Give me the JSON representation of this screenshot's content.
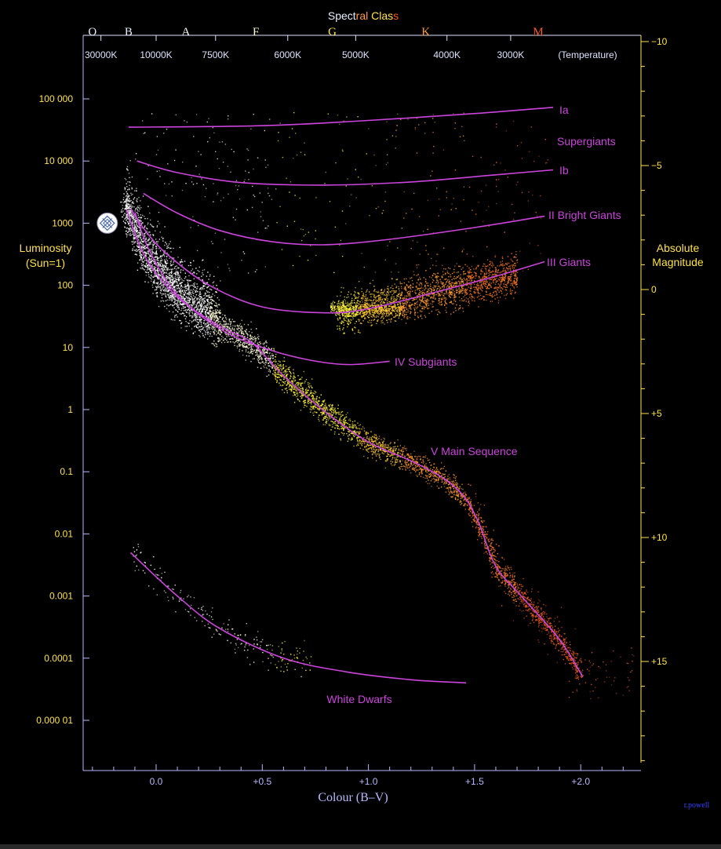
{
  "chart_data": {
    "type": "scatter",
    "title_parts": [
      {
        "text": "Spect",
        "color": "#e8f0ff"
      },
      {
        "text": "ral",
        "color": "#ff9a3c"
      },
      {
        "text": " Clas",
        "color": "#ffe24a"
      },
      {
        "text": "s",
        "color": "#ff5522"
      }
    ],
    "xlabel": "Colour (B–V)",
    "ylabel_left": [
      "Luminosity",
      "(Sun=1)"
    ],
    "ylabel_right": [
      "Absolute",
      "Magnitude"
    ],
    "temperature_unit_label": "(Temperature)",
    "credit": "r.powell",
    "x_axis": {
      "range": [
        -0.35,
        2.25
      ],
      "ticks": [
        {
          "value": 0.0,
          "label": "0.0"
        },
        {
          "value": 0.5,
          "label": "+0.5"
        },
        {
          "value": 1.0,
          "label": "+1.0"
        },
        {
          "value": 1.5,
          "label": "+1.5"
        },
        {
          "value": 2.0,
          "label": "+2.0"
        }
      ]
    },
    "luminosity_axis": {
      "scale": "log",
      "range": [
        1e-06,
        1000000.0
      ],
      "ticks": [
        {
          "value": 100000,
          "label": "100 000"
        },
        {
          "value": 10000,
          "label": "10 000"
        },
        {
          "value": 1000,
          "label": "1000"
        },
        {
          "value": 100,
          "label": "100"
        },
        {
          "value": 10,
          "label": "10"
        },
        {
          "value": 1,
          "label": "1"
        },
        {
          "value": 0.1,
          "label": "0.1"
        },
        {
          "value": 0.01,
          "label": "0.01"
        },
        {
          "value": 0.001,
          "label": "0.001"
        },
        {
          "value": 0.0001,
          "label": "0.0001"
        },
        {
          "value": 1e-05,
          "label": "0.000 01"
        }
      ]
    },
    "magnitude_axis": {
      "ticks": [
        {
          "value": -10,
          "label": "−10"
        },
        {
          "value": -5,
          "label": "−5"
        },
        {
          "value": 0,
          "label": "0"
        },
        {
          "value": 5,
          "label": "+5"
        },
        {
          "value": 10,
          "label": "+10"
        },
        {
          "value": 15,
          "label": "+15"
        }
      ]
    },
    "spectral_classes": [
      {
        "label": "O",
        "bv": -0.3,
        "color": "#e8f0ff"
      },
      {
        "label": "B",
        "bv": -0.13,
        "color": "#e8f0ff"
      },
      {
        "label": "A",
        "bv": 0.14,
        "color": "#f4f4f4"
      },
      {
        "label": "F",
        "bv": 0.47,
        "color": "#fff8d0"
      },
      {
        "label": "G",
        "bv": 0.83,
        "color": "#ffe24a"
      },
      {
        "label": "K",
        "bv": 1.27,
        "color": "#ff9a3c"
      },
      {
        "label": "M",
        "bv": 1.8,
        "color": "#ff5522"
      }
    ],
    "temperatures": [
      {
        "label": "30000K",
        "bv": -0.26
      },
      {
        "label": "10000K",
        "bv": -0.0
      },
      {
        "label": "7500K",
        "bv": 0.28
      },
      {
        "label": "6000K",
        "bv": 0.62
      },
      {
        "label": "5000K",
        "bv": 0.94
      },
      {
        "label": "4000K",
        "bv": 1.37
      },
      {
        "label": "3000K",
        "bv": 1.67
      }
    ],
    "sun_marker": {
      "bv": -0.23,
      "luminosity": 1000
    },
    "series": [
      {
        "name": "Ia",
        "label_text": "Ia",
        "color": "#cc44dd",
        "points": [
          [
            -0.13,
            35000
          ],
          [
            0.5,
            37000
          ],
          [
            1.0,
            45000
          ],
          [
            1.5,
            58000
          ],
          [
            1.87,
            73000
          ]
        ]
      },
      {
        "name": "Ib",
        "label_text": "Ib",
        "color": "#cc44dd",
        "points": [
          [
            -0.09,
            10000
          ],
          [
            0.1,
            6500
          ],
          [
            0.4,
            4500
          ],
          [
            0.8,
            4100
          ],
          [
            1.2,
            4600
          ],
          [
            1.6,
            6000
          ],
          [
            1.87,
            7200
          ]
        ]
      },
      {
        "name": "II",
        "label_text": "II Bright Giants",
        "color": "#cc44dd",
        "points": [
          [
            -0.06,
            3000
          ],
          [
            0.1,
            1450
          ],
          [
            0.3,
            760
          ],
          [
            0.55,
            500
          ],
          [
            0.8,
            450
          ],
          [
            1.1,
            550
          ],
          [
            1.5,
            850
          ],
          [
            1.83,
            1300
          ]
        ]
      },
      {
        "name": "III",
        "label_text": "III    Giants",
        "color": "#cc44dd",
        "points": [
          [
            -0.12,
            1700
          ],
          [
            -0.05,
            750
          ],
          [
            0.05,
            320
          ],
          [
            0.25,
            100
          ],
          [
            0.5,
            45
          ],
          [
            0.8,
            36
          ],
          [
            1.0,
            42
          ],
          [
            1.3,
            75
          ],
          [
            1.6,
            140
          ],
          [
            1.83,
            240
          ]
        ]
      },
      {
        "name": "IV",
        "label_text": "IV  Subgiants",
        "color": "#cc44dd",
        "points": [
          [
            -0.1,
            1500
          ],
          [
            -0.03,
            350
          ],
          [
            0.1,
            70
          ],
          [
            0.3,
            20
          ],
          [
            0.5,
            10
          ],
          [
            0.7,
            6.5
          ],
          [
            0.9,
            5.3
          ],
          [
            1.1,
            6
          ]
        ]
      },
      {
        "name": "V",
        "label_text": "V  Main Sequence",
        "color": "#cc44dd",
        "points": [
          [
            -0.14,
            1650
          ],
          [
            -0.05,
            280
          ],
          [
            0.1,
            65
          ],
          [
            0.3,
            22
          ],
          [
            0.45,
            12
          ],
          [
            0.6,
            3.5
          ],
          [
            0.8,
            0.9
          ],
          [
            1.0,
            0.3
          ],
          [
            1.2,
            0.15
          ],
          [
            1.35,
            0.08
          ],
          [
            1.45,
            0.04
          ],
          [
            1.52,
            0.015
          ],
          [
            1.6,
            0.003
          ],
          [
            1.72,
            0.001
          ],
          [
            1.9,
            0.0002
          ],
          [
            2.01,
            5e-05
          ]
        ]
      },
      {
        "name": "White Dwarfs",
        "label_text": "White Dwarfs",
        "color": "#cc44dd",
        "points": [
          [
            -0.12,
            0.005
          ],
          [
            0.1,
            0.001
          ],
          [
            0.3,
            0.0003
          ],
          [
            0.6,
            0.0001
          ],
          [
            0.9,
            6e-05
          ],
          [
            1.2,
            4.5e-05
          ],
          [
            1.46,
            4e-05
          ]
        ]
      }
    ]
  }
}
